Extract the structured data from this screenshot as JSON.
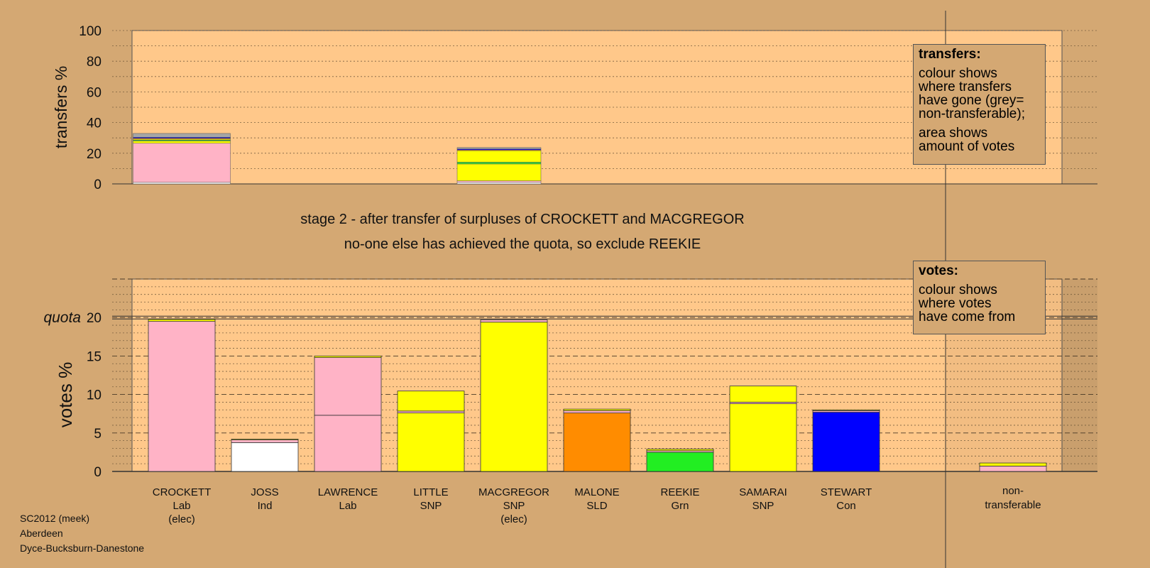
{
  "chart_data": {
    "type": "bar",
    "stage_text": {
      "line1": "stage 2 - after transfer of surpluses of CROCKETT and MACGREGOR",
      "line2": "no-one else has achieved the quota, so exclude REEKIE"
    },
    "transfers": {
      "ylabel": "transfers %",
      "ylim": [
        0,
        100
      ],
      "yticks": [
        0,
        20,
        40,
        60,
        80,
        100
      ],
      "bars": [
        {
          "from": "CROCKETT",
          "segments": [
            {
              "value": 1,
              "color": "#ffffff"
            },
            {
              "value": 25.5,
              "color": "#ffb3c6"
            },
            {
              "value": 1.5,
              "color": "#ffff00"
            },
            {
              "value": 0.6,
              "color": "#33dd33"
            },
            {
              "value": 0.6,
              "color": "#ffff00"
            },
            {
              "value": 0.6,
              "color": "#ff8c00"
            },
            {
              "value": 0.6,
              "color": "#0000ff"
            },
            {
              "value": 2.5,
              "color": "#a6a6a6"
            }
          ]
        },
        {
          "from": "MACGREGOR",
          "segments": [
            {
              "value": 1,
              "color": "#ffffff"
            },
            {
              "value": 1,
              "color": "#ffb3c6"
            },
            {
              "value": 11,
              "color": "#ffff00"
            },
            {
              "value": 1.2,
              "color": "#33dd33"
            },
            {
              "value": 7.5,
              "color": "#ffff00"
            },
            {
              "value": 0.5,
              "color": "#ff8c00"
            },
            {
              "value": 0.6,
              "color": "#0000ff"
            },
            {
              "value": 0.9,
              "color": "#a6a6a6"
            }
          ]
        }
      ]
    },
    "votes": {
      "ylabel": "votes %",
      "quota_label": "quota",
      "quota": 20,
      "ylim": [
        0,
        25
      ],
      "yticks": [
        0,
        5,
        10,
        15,
        20
      ],
      "candidates": [
        {
          "name": "CROCKETT",
          "party": "Lab",
          "note": "(elec)",
          "segments": [
            {
              "value": 19.5,
              "color": "#ffb3c6"
            },
            {
              "value": 0.25,
              "color": "#ffff00"
            }
          ]
        },
        {
          "name": "JOSS",
          "party": "Ind",
          "note": "",
          "segments": [
            {
              "value": 3.75,
              "color": "#ffffff"
            },
            {
              "value": 0.35,
              "color": "#ffb3c6"
            },
            {
              "value": 0.1,
              "color": "#ffff00"
            }
          ]
        },
        {
          "name": "LAWRENCE",
          "party": "Lab",
          "note": "",
          "segments": [
            {
              "value": 7.3,
              "color": "#ffb3c6"
            },
            {
              "value": 7.5,
              "color": "#ffb3c6"
            },
            {
              "value": 0.2,
              "color": "#ffff00"
            }
          ]
        },
        {
          "name": "LITTLE",
          "party": "SNP",
          "note": "",
          "segments": [
            {
              "value": 7.6,
              "color": "#ffff00"
            },
            {
              "value": 0.25,
              "color": "#ffb3c6"
            },
            {
              "value": 2.6,
              "color": "#ffff00"
            }
          ]
        },
        {
          "name": "MACGREGOR",
          "party": "SNP",
          "note": "(elec)",
          "segments": [
            {
              "value": 19.4,
              "color": "#ffff00"
            },
            {
              "value": 0.3,
              "color": "#ffb3c6"
            }
          ]
        },
        {
          "name": "MALONE",
          "party": "SLD",
          "note": "",
          "segments": [
            {
              "value": 7.6,
              "color": "#ff8c00"
            },
            {
              "value": 0.3,
              "color": "#ffb3c6"
            },
            {
              "value": 0.2,
              "color": "#ffff00"
            }
          ]
        },
        {
          "name": "REEKIE",
          "party": "Grn",
          "note": "",
          "segments": [
            {
              "value": 2.5,
              "color": "#22ee22"
            },
            {
              "value": 0.2,
              "color": "#ffb3c6"
            },
            {
              "value": 0.2,
              "color": "#ffff00"
            }
          ]
        },
        {
          "name": "SAMARAI",
          "party": "SNP",
          "note": "",
          "segments": [
            {
              "value": 8.8,
              "color": "#ffff00"
            },
            {
              "value": 0.2,
              "color": "#ffb3c6"
            },
            {
              "value": 2.1,
              "color": "#ffff00"
            }
          ]
        },
        {
          "name": "STEWART",
          "party": "Con",
          "note": "",
          "segments": [
            {
              "value": 7.7,
              "color": "#0000ff"
            },
            {
              "value": 0.2,
              "color": "#ffb3c6"
            },
            {
              "value": 0.1,
              "color": "#ffff00"
            }
          ]
        }
      ],
      "non_transferable": {
        "label1": "non-",
        "label2": "transferable",
        "segments": [
          {
            "value": 0.7,
            "color": "#ffb3c6"
          },
          {
            "value": 0.4,
            "color": "#ffff00"
          }
        ]
      }
    }
  },
  "legend_transfers": {
    "title": "transfers:",
    "lines": [
      "colour shows",
      "where transfers",
      "have gone (grey=",
      "non-transferable);"
    ],
    "lines2": [
      "area shows",
      "amount of votes"
    ]
  },
  "legend_votes": {
    "title": "votes:",
    "lines": [
      "colour shows",
      "where votes",
      "have come from"
    ]
  },
  "footer": {
    "line1": "SC2012 (meek)",
    "line2": "Aberdeen",
    "line3": "Dyce-Bucksburn-Danestone"
  }
}
